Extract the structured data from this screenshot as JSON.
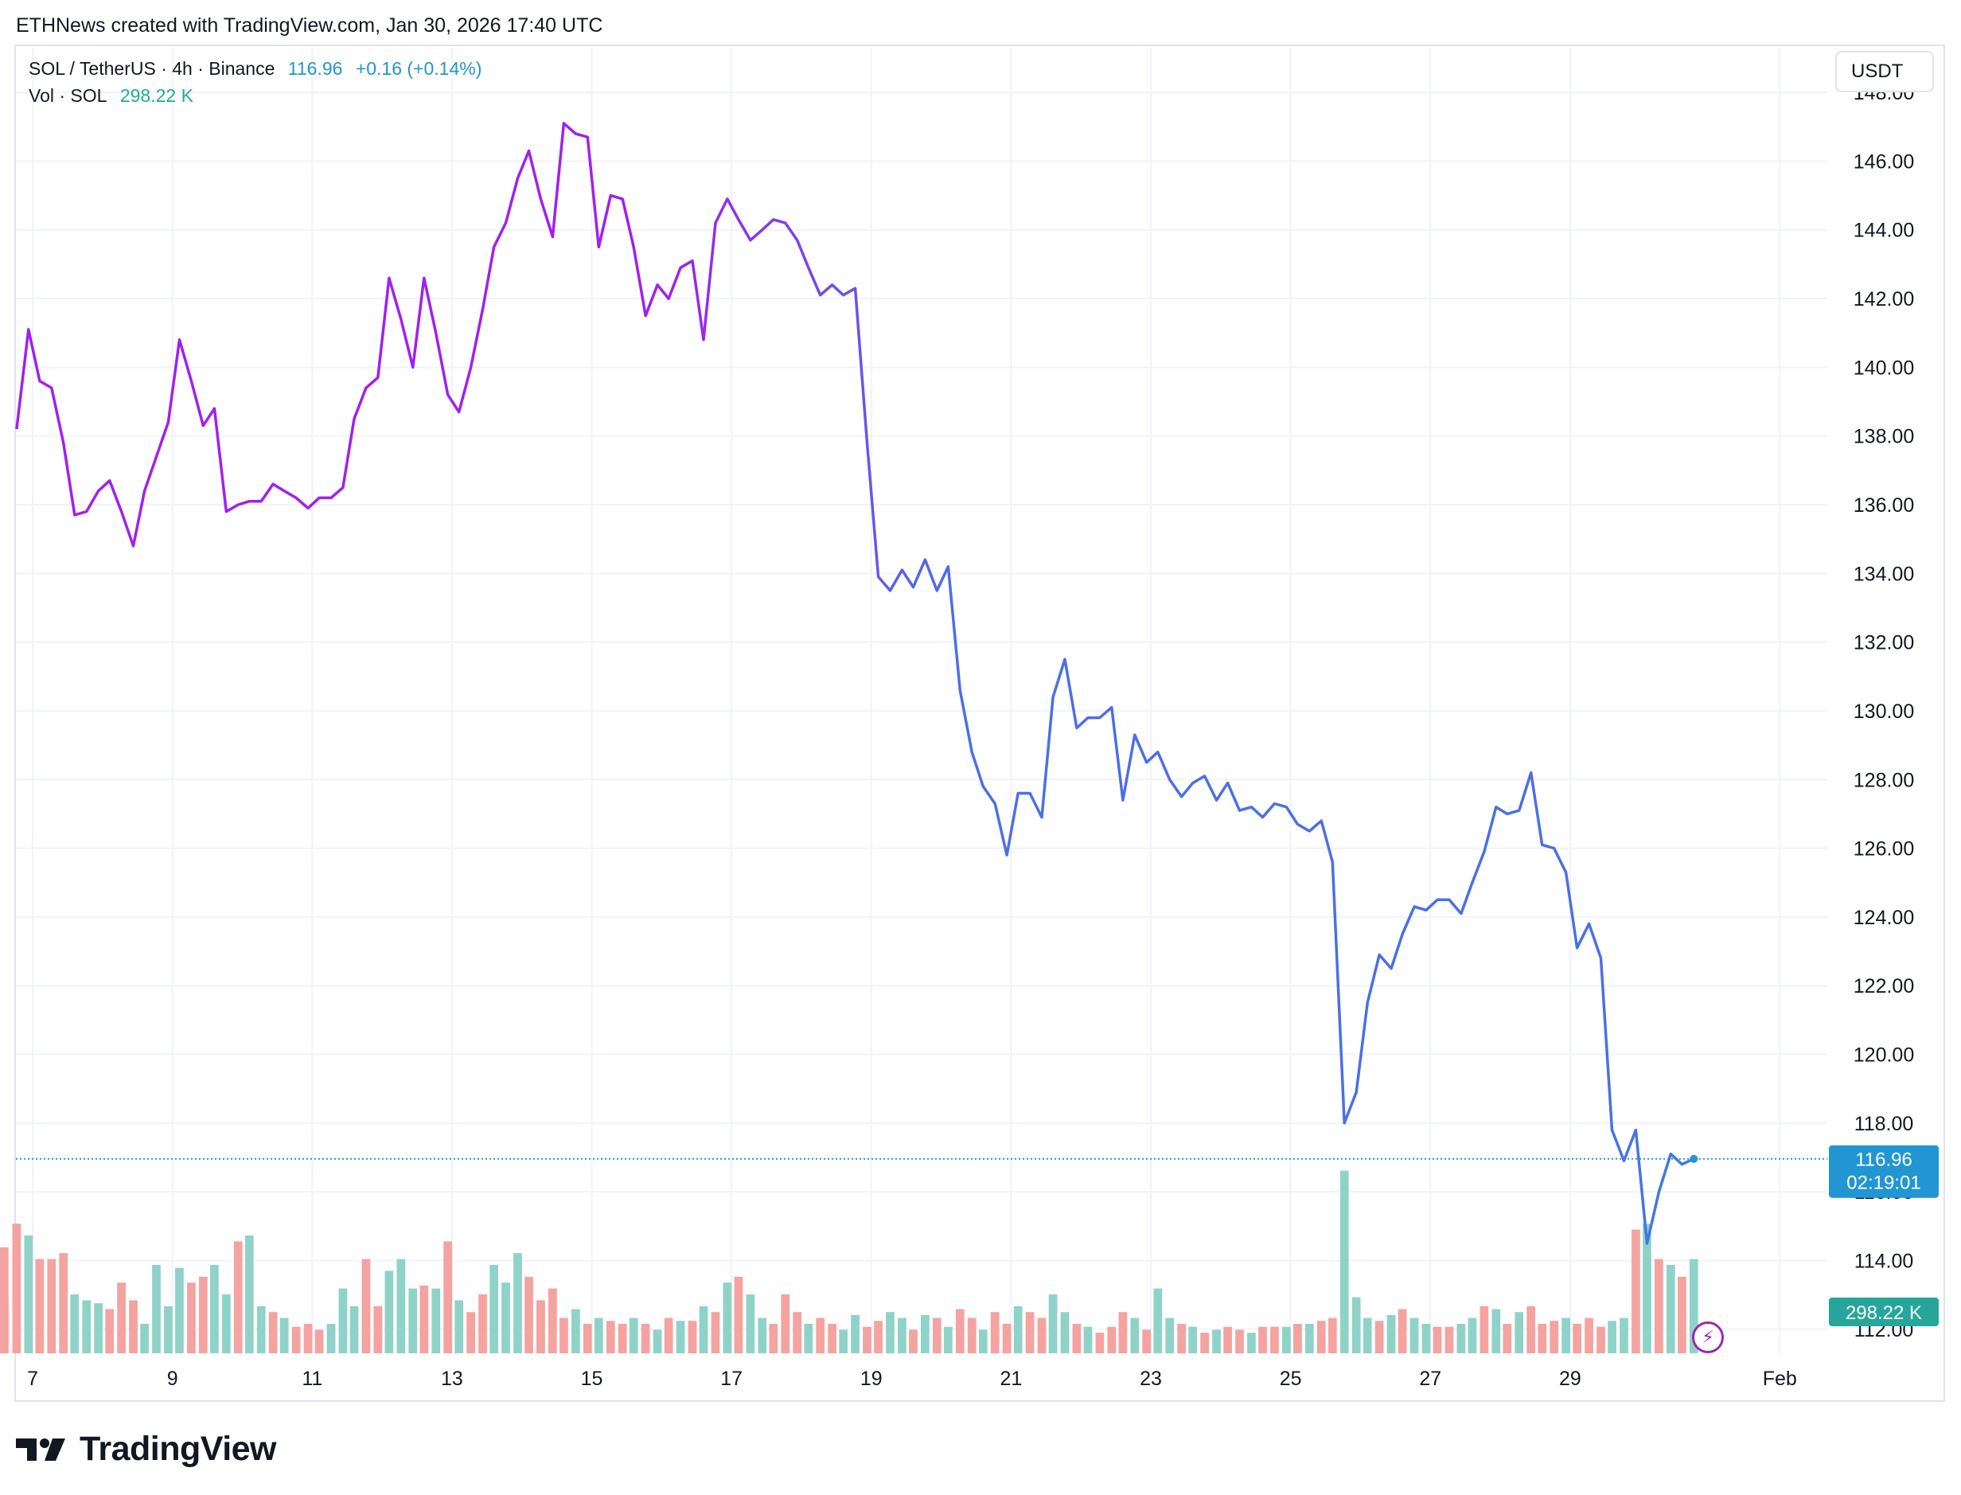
{
  "credit": "ETHNews created with TradingView.com, Jan 30, 2026 17:40 UTC",
  "legend": {
    "symbol": "SOL / TetherUS · 4h · Binance",
    "price": "116.96",
    "change": "+0.16 (+0.14%)",
    "vol_label": "Vol · SOL",
    "vol_value": "298.22 K"
  },
  "currency_button": "USDT",
  "price_tag": "116.96",
  "countdown": "02:19:01",
  "volume_tag": "298.22 K",
  "brand": "TradingView",
  "colors": {
    "price_purple": "#a020f0",
    "price_blue_mid": "#4c6fe6",
    "price_blue_end": "#2196d3",
    "volume_up": "#8fd3c8",
    "volume_down": "#f4a3a0",
    "grid": "#f0f3fa",
    "last_price_line": "#2196d3",
    "volume_tag_bg": "#26a69a"
  },
  "chart_data": {
    "type": "line",
    "interval": "4h",
    "ylim": [
      111.3,
      149.3
    ],
    "y_ticks": [
      "112.00",
      "114.00",
      "116.00",
      "118.00",
      "120.00",
      "122.00",
      "124.00",
      "126.00",
      "128.00",
      "130.00",
      "132.00",
      "134.00",
      "136.00",
      "138.00",
      "140.00",
      "142.00",
      "144.00",
      "146.00",
      "148.00"
    ],
    "y_tick_values": [
      112,
      114,
      116,
      118,
      120,
      122,
      124,
      126,
      128,
      130,
      132,
      134,
      136,
      138,
      140,
      142,
      144,
      146,
      148
    ],
    "x_ticks": [
      "7",
      "9",
      "11",
      "13",
      "15",
      "17",
      "19",
      "21",
      "23",
      "25",
      "27",
      "29",
      "Feb"
    ],
    "x_tick_days": [
      7,
      9,
      11,
      13,
      15,
      17,
      19,
      21,
      23,
      25,
      27,
      29,
      32
    ],
    "x_range_days": [
      6.76,
      32.68
    ],
    "grid": true,
    "series": [
      {
        "name": "SOL / TetherUS",
        "x_days": [
          6.77,
          6.94,
          7.1,
          7.27,
          7.44,
          7.6,
          7.77,
          7.94,
          8.1,
          8.27,
          8.44,
          8.6,
          8.77,
          8.94,
          9.1,
          9.27,
          9.44,
          9.6,
          9.77,
          9.94,
          10.1,
          10.27,
          10.44,
          10.6,
          10.77,
          10.94,
          11.1,
          11.27,
          11.44,
          11.6,
          11.77,
          11.94,
          12.1,
          12.27,
          12.44,
          12.6,
          12.77,
          12.94,
          13.1,
          13.27,
          13.44,
          13.6,
          13.77,
          13.94,
          14.1,
          14.27,
          14.44,
          14.6,
          14.77,
          14.94,
          15.1,
          15.27,
          15.44,
          15.6,
          15.77,
          15.94,
          16.1,
          16.27,
          16.44,
          16.6,
          16.77,
          16.94,
          17.1,
          17.27,
          17.44,
          17.6,
          17.77,
          17.94,
          18.1,
          18.27,
          18.44,
          18.6,
          18.77,
          18.94,
          19.1,
          19.27,
          19.44,
          19.6,
          19.77,
          19.94,
          20.1,
          20.27,
          20.44,
          20.6,
          20.77,
          20.94,
          21.1,
          21.27,
          21.44,
          21.6,
          21.77,
          21.94,
          22.1,
          22.27,
          22.44,
          22.6,
          22.77,
          22.94,
          23.1,
          23.27,
          23.44,
          23.6,
          23.77,
          23.94,
          24.1,
          24.27,
          24.44,
          24.6,
          24.77,
          24.94,
          25.1,
          25.27,
          25.44,
          25.6,
          25.77,
          25.94,
          26.1,
          26.27,
          26.44,
          26.6,
          26.77,
          26.94,
          27.1,
          27.27,
          27.44,
          27.6,
          27.77,
          27.94,
          28.1,
          28.27,
          28.44,
          28.6,
          28.77,
          28.94,
          29.1,
          29.27,
          29.44,
          29.6,
          29.77,
          29.94,
          30.1,
          30.27,
          30.44,
          30.6,
          30.77
        ],
        "values": [
          138.2,
          141.1,
          139.6,
          139.4,
          137.8,
          135.7,
          135.8,
          136.4,
          136.7,
          135.8,
          134.8,
          136.4,
          137.4,
          138.4,
          140.8,
          139.6,
          138.3,
          138.8,
          135.8,
          136.0,
          136.1,
          136.1,
          136.6,
          136.4,
          136.2,
          135.9,
          136.2,
          136.2,
          136.5,
          138.5,
          139.4,
          139.7,
          142.6,
          141.4,
          140.0,
          142.6,
          141.0,
          139.2,
          138.7,
          140.0,
          141.7,
          143.5,
          144.2,
          145.5,
          146.3,
          144.9,
          143.8,
          147.1,
          146.8,
          146.7,
          143.5,
          145.0,
          144.9,
          143.5,
          141.5,
          142.4,
          142.0,
          142.9,
          143.1,
          140.8,
          144.2,
          144.9,
          144.3,
          143.7,
          144.0,
          144.3,
          144.2,
          143.7,
          142.9,
          142.1,
          142.4,
          142.1,
          142.3,
          137.8,
          133.9,
          133.5,
          134.1,
          133.6,
          134.4,
          133.5,
          134.2,
          130.6,
          128.8,
          127.8,
          127.3,
          125.8,
          127.6,
          127.6,
          126.9,
          130.4,
          131.5,
          129.5,
          129.8,
          129.8,
          130.1,
          127.4,
          129.3,
          128.5,
          128.8,
          128.0,
          127.5,
          127.9,
          128.1,
          127.4,
          127.9,
          127.1,
          127.2,
          126.9,
          127.3,
          127.2,
          126.7,
          126.5,
          126.8,
          125.6,
          118.0,
          118.9,
          121.5,
          122.9,
          122.5,
          123.5,
          124.3,
          124.2,
          124.5,
          124.5,
          124.1,
          125.0,
          125.9,
          127.2,
          127.0,
          127.1,
          128.2,
          126.1,
          126.0,
          125.3,
          123.1,
          123.8,
          122.8,
          117.8,
          116.9,
          117.8,
          114.5,
          116.0,
          117.1,
          116.8,
          116.96
        ]
      }
    ],
    "volume": {
      "name": "Vol · SOL",
      "values": [
        2.2,
        2.0,
        1.6,
        1.6,
        1.7,
        1.0,
        0.9,
        0.85,
        0.75,
        1.2,
        0.9,
        0.5,
        1.5,
        0.8,
        1.45,
        1.2,
        1.3,
        1.5,
        1.0,
        1.9,
        2.0,
        0.8,
        0.7,
        0.6,
        0.45,
        0.5,
        0.4,
        0.5,
        1.1,
        0.8,
        1.6,
        0.8,
        1.4,
        1.6,
        1.1,
        1.15,
        1.1,
        1.9,
        0.9,
        0.7,
        1.0,
        1.5,
        1.2,
        1.7,
        1.3,
        0.9,
        1.1,
        0.6,
        0.75,
        0.5,
        0.6,
        0.55,
        0.5,
        0.6,
        0.5,
        0.4,
        0.6,
        0.55,
        0.55,
        0.8,
        0.7,
        1.2,
        1.3,
        1.0,
        0.6,
        0.5,
        1.0,
        0.7,
        0.5,
        0.6,
        0.5,
        0.4,
        0.65,
        0.45,
        0.55,
        0.7,
        0.6,
        0.4,
        0.65,
        0.6,
        0.45,
        0.75,
        0.6,
        0.4,
        0.7,
        0.5,
        0.8,
        0.7,
        0.6,
        1.0,
        0.7,
        0.5,
        0.45,
        0.35,
        0.45,
        0.7,
        0.6,
        0.4,
        1.1,
        0.6,
        0.5,
        0.45,
        0.35,
        0.4,
        0.45,
        0.4,
        0.35,
        0.45,
        0.45,
        0.45,
        0.5,
        0.5,
        0.55,
        0.6,
        3.1,
        0.95,
        0.6,
        0.55,
        0.65,
        0.75,
        0.6,
        0.5,
        0.45,
        0.45,
        0.5,
        0.6,
        0.8,
        0.75,
        0.5,
        0.7,
        0.8,
        0.5,
        0.55,
        0.6,
        0.5,
        0.6,
        0.45,
        0.55,
        0.6,
        2.1,
        2.2,
        1.6,
        1.5,
        1.3,
        1.6,
        1.8,
        0.9
      ],
      "up": [
        false,
        true,
        false,
        false,
        false,
        true,
        true,
        true,
        false,
        false,
        false,
        true,
        true,
        true,
        true,
        false,
        false,
        true,
        true,
        false,
        true,
        true,
        false,
        true,
        false,
        false,
        false,
        true,
        true,
        true,
        false,
        false,
        true,
        true,
        true,
        false,
        true,
        false,
        true,
        false,
        false,
        true,
        true,
        true,
        false,
        false,
        false,
        false,
        true,
        false,
        true,
        false,
        false,
        true,
        false,
        true,
        false,
        true,
        false,
        true,
        false,
        true,
        false,
        true,
        true,
        false,
        false,
        false,
        true,
        false,
        false,
        true,
        true,
        false,
        false,
        true,
        true,
        false,
        true,
        false,
        true,
        false,
        false,
        true,
        false,
        false,
        true,
        false,
        false,
        true,
        true,
        false,
        true,
        false,
        false,
        false,
        true,
        false,
        true,
        true,
        false,
        true,
        false,
        true,
        false,
        false,
        true,
        false,
        false,
        true,
        false,
        true,
        false,
        false,
        true,
        true,
        true,
        false,
        true,
        false,
        true,
        true,
        false,
        false,
        true,
        true,
        false,
        true,
        false,
        true,
        false,
        false,
        false,
        true,
        false,
        false,
        false,
        true,
        true,
        false,
        true,
        false,
        true,
        false,
        true
      ]
    }
  }
}
